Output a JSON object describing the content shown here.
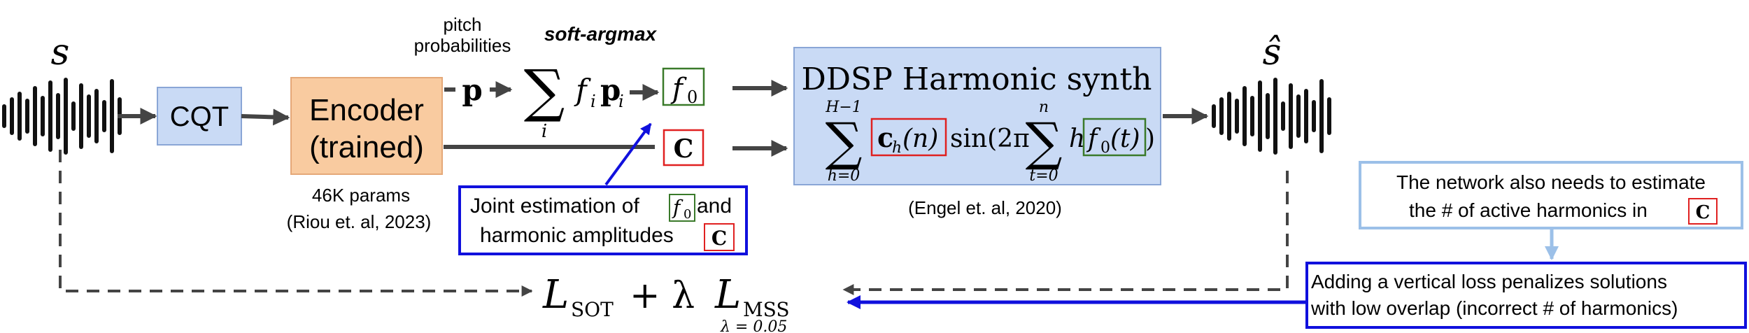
{
  "input_signal": {
    "label": "s"
  },
  "cqt_block": {
    "label": "CQT"
  },
  "encoder_block": {
    "line1": "Encoder",
    "line2": "(trained)"
  },
  "encoder_info": {
    "params": "46K params",
    "citation": "(Riou et. al, 2023)"
  },
  "pitch_label": {
    "line1": "pitch",
    "line2": "probabilities"
  },
  "soft_argmax": {
    "label": "soft-argmax",
    "sum_sub": "i",
    "term": "f",
    "term_sub": "i",
    "vec": "p",
    "vec_sub": "i"
  },
  "p_vector": {
    "label": "p"
  },
  "f0_output": {
    "base": "f",
    "sub": "0"
  },
  "c_output": {
    "label": "C"
  },
  "ddsp_block": {
    "title": "DDSP Harmonic synth",
    "sum1_top": "H−1",
    "sum1_bottom": "h=0",
    "ch": "c",
    "ch_sub": "h",
    "ch_arg": "(n)",
    "sin_text": "sin(2π",
    "sum2_top": "n",
    "sum2_bottom": "t=0",
    "h_letter": "h",
    "f0t_base": "f",
    "f0t_sub": "0",
    "f0t_arg": "(t)",
    "close": ")"
  },
  "ddsp_citation": "(Engel et. al, 2020)",
  "output_signal": {
    "label": "ŝ"
  },
  "joint_note": {
    "prefix": "Joint estimation of",
    "f0_base": "f",
    "f0_sub": "0",
    "mid": "and",
    "line2": "harmonic amplitudes",
    "c": "C"
  },
  "harmonics_note": {
    "line1": "The network also needs to estimate",
    "line2": "the # of active harmonics in",
    "c": "C"
  },
  "vertical_loss_note": {
    "line1": "Adding a vertical loss penalizes solutions",
    "line2": "with low overlap (incorrect # of harmonics)"
  },
  "loss": {
    "L1": "L",
    "sub1": "SOT",
    "plus": "+ λ",
    "L2": "L",
    "sub2": "MSS",
    "lambda_note": "λ = 0.05"
  },
  "colors": {
    "cqt_fill": "#c9daf5",
    "cqt_stroke": "#8aa6d6",
    "encoder_fill": "#f9cba0",
    "encoder_stroke": "#e5a878",
    "ddsp_fill": "#c9daf5",
    "ddsp_stroke": "#8aa6d6",
    "red": "#e02020",
    "green": "#3a7a2a",
    "blue": "#1010dd",
    "light_blue": "#9cc0e8",
    "arrow": "#444444"
  }
}
